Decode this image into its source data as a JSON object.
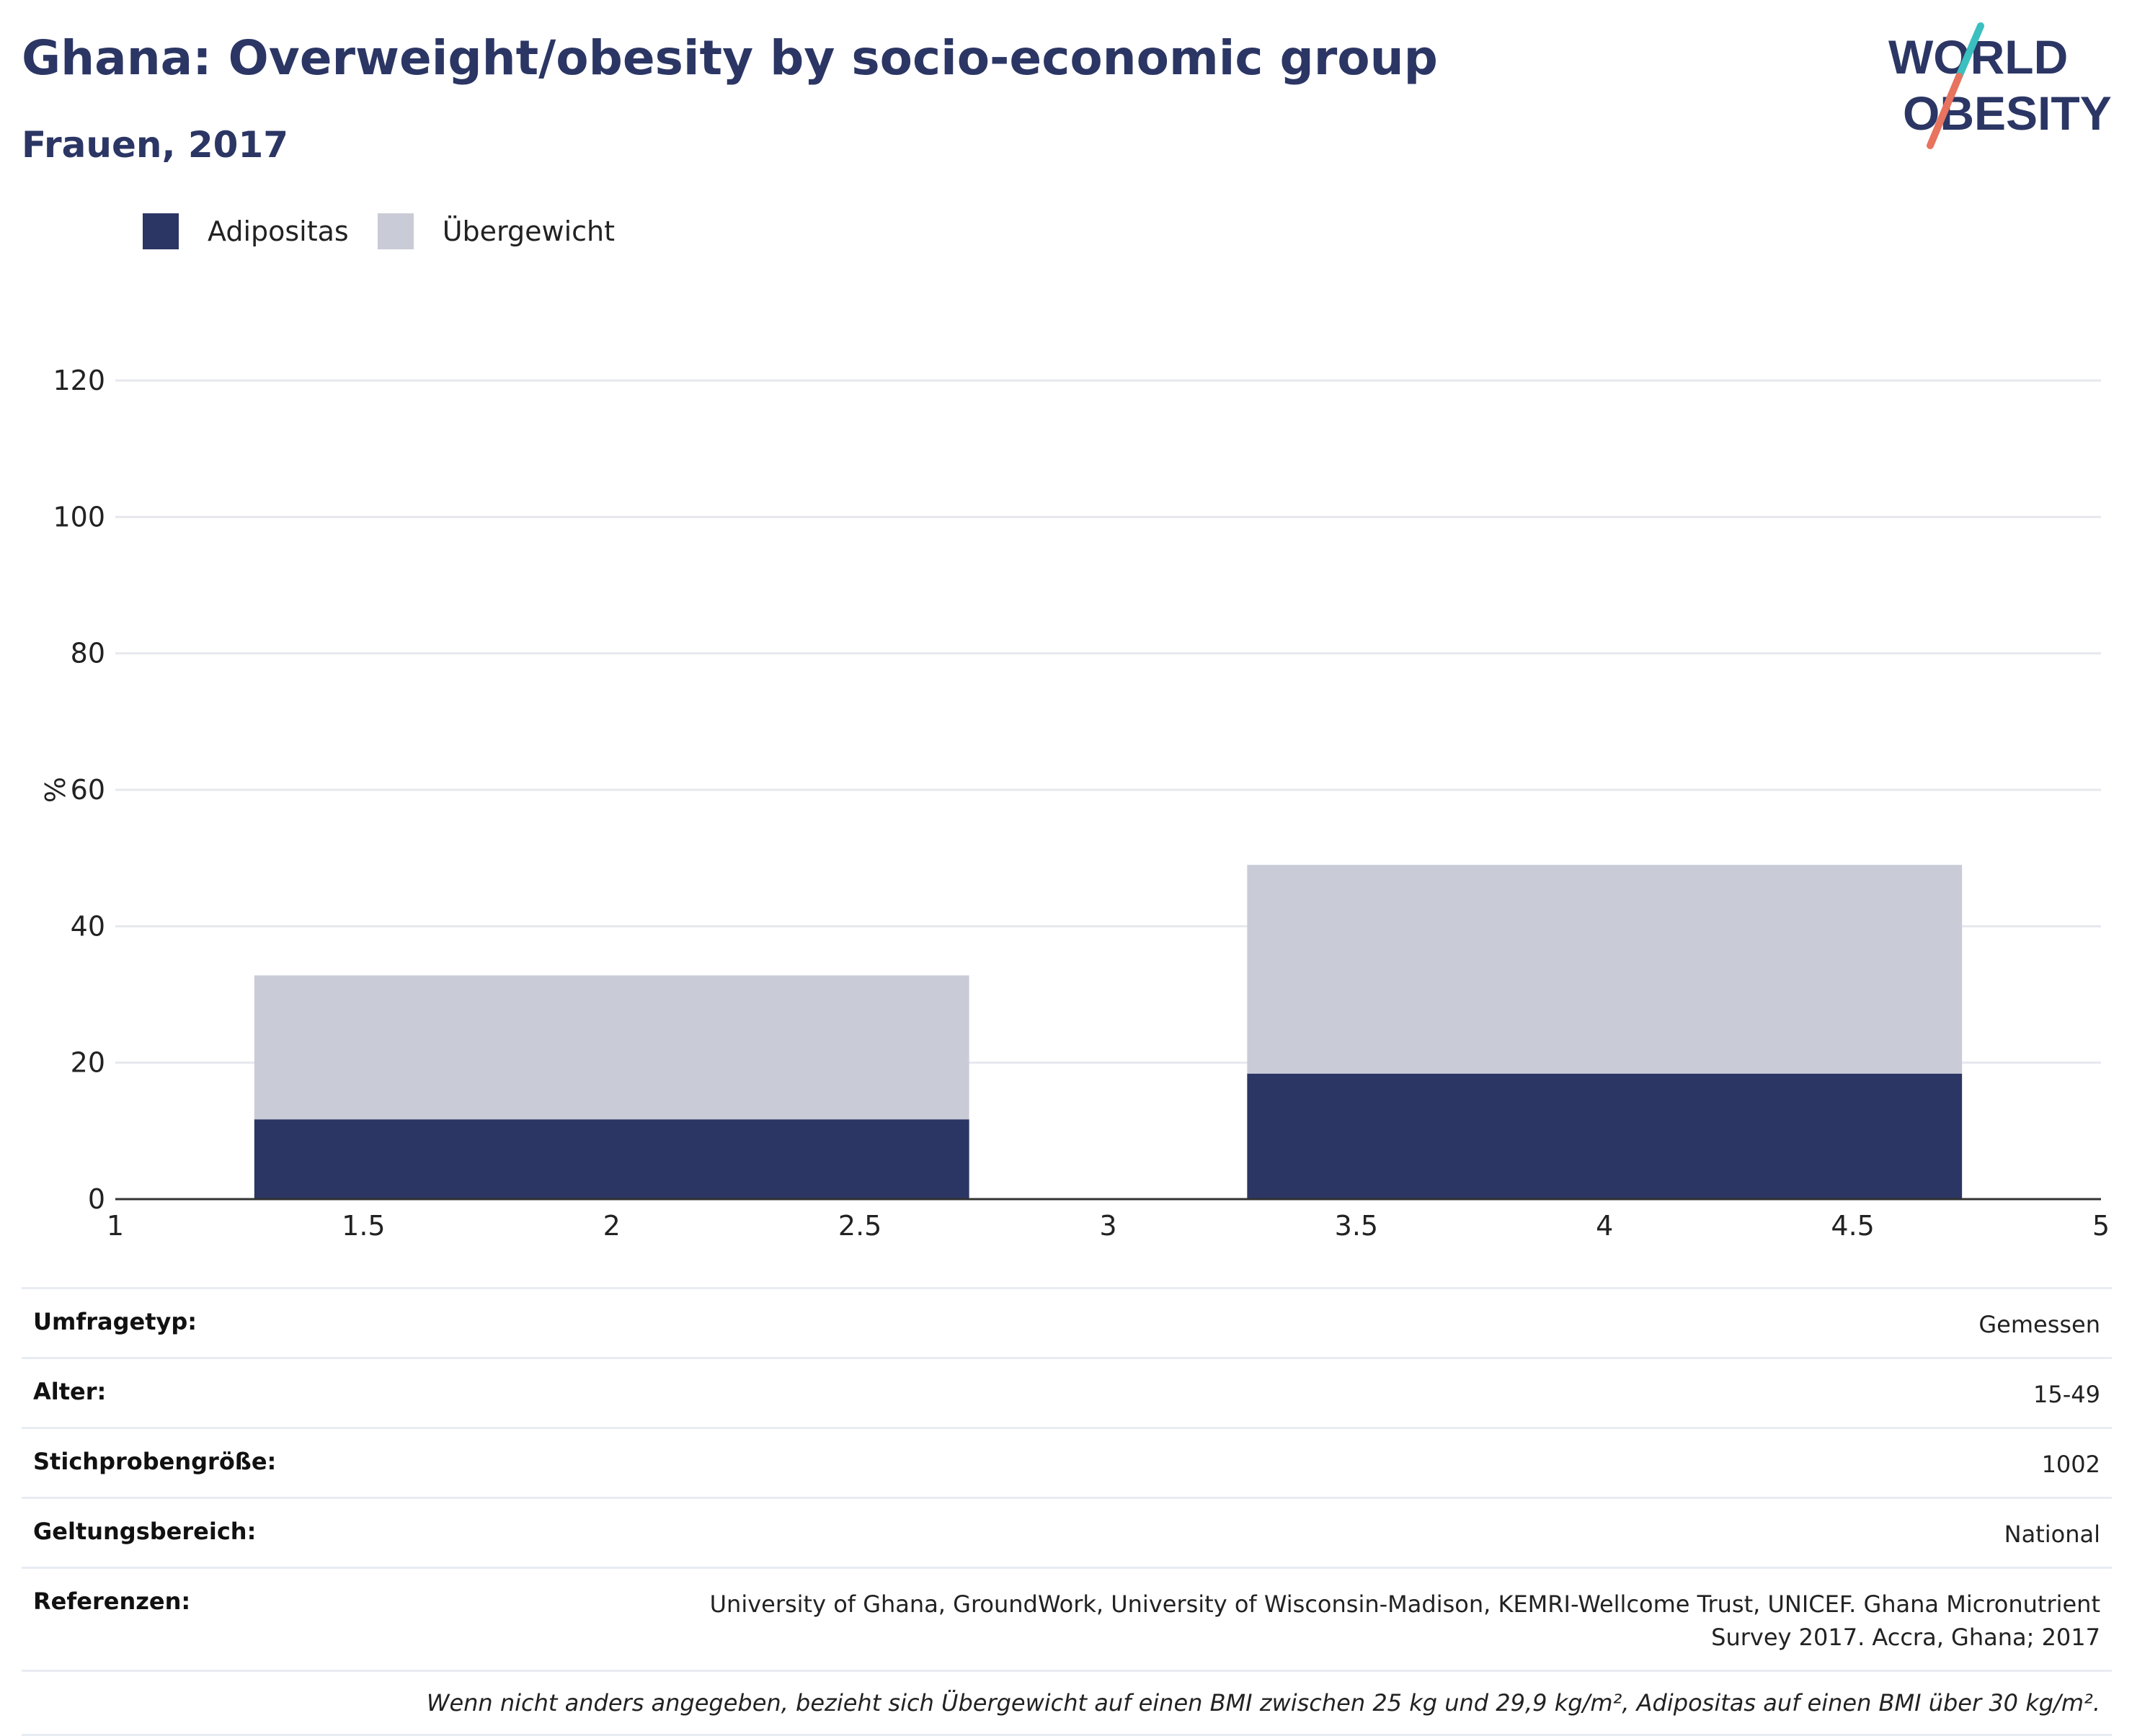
{
  "header": {
    "title": "Ghana: Overweight/obesity by socio-economic group",
    "subtitle": "Frauen, 2017"
  },
  "logo": {
    "line1": "WORLD",
    "line2": "OBESITY",
    "colors": {
      "text": "#2b3664",
      "slash_teal": "#3bbfbf",
      "slash_coral": "#e8735e"
    }
  },
  "legend": [
    {
      "label": "Adipositas",
      "color": "#2b3664"
    },
    {
      "label": "Übergewicht",
      "color": "#c9cbd7"
    }
  ],
  "chart_data": {
    "type": "bar",
    "stacked": true,
    "ylabel": "%",
    "xlabel": "",
    "ylim": [
      0,
      120
    ],
    "xlim": [
      1,
      5
    ],
    "yticks": [
      0,
      20,
      40,
      60,
      80,
      100,
      120
    ],
    "xticks": [
      "1",
      "1.5",
      "2",
      "2.5",
      "3",
      "3.5",
      "4",
      "4.5",
      "5"
    ],
    "grid": true,
    "bars": [
      {
        "x_from": 1.28,
        "x_to": 2.72,
        "segments": [
          {
            "series": "Adipositas",
            "value": 11.7
          },
          {
            "series": "Übergewicht",
            "value": 21.1
          }
        ]
      },
      {
        "x_from": 3.28,
        "x_to": 4.72,
        "segments": [
          {
            "series": "Adipositas",
            "value": 18.4
          },
          {
            "series": "Übergewicht",
            "value": 30.6
          }
        ]
      }
    ],
    "colors": {
      "Adipositas": "#2b3664",
      "Übergewicht": "#c9cbd7",
      "grid": "#e6e8ee",
      "axis": "#333333"
    }
  },
  "meta": [
    {
      "key": "Umfragetyp:",
      "value": "Gemessen"
    },
    {
      "key": "Alter:",
      "value": "15-49"
    },
    {
      "key": "Stichprobengröße:",
      "value": "1002"
    },
    {
      "key": "Geltungsbereich:",
      "value": "National"
    },
    {
      "key": "Referenzen:",
      "value": "University of Ghana, GroundWork, University of Wisconsin-Madison, KEMRI-Wellcome Trust, UNICEF. Ghana Micronutrient Survey 2017. Accra, Ghana; 2017"
    }
  ],
  "footnote": "Wenn nicht anders angegeben, bezieht sich Übergewicht auf einen BMI zwischen 25 kg und 29,9 kg/m², Adipositas auf einen BMI über 30 kg/m²."
}
